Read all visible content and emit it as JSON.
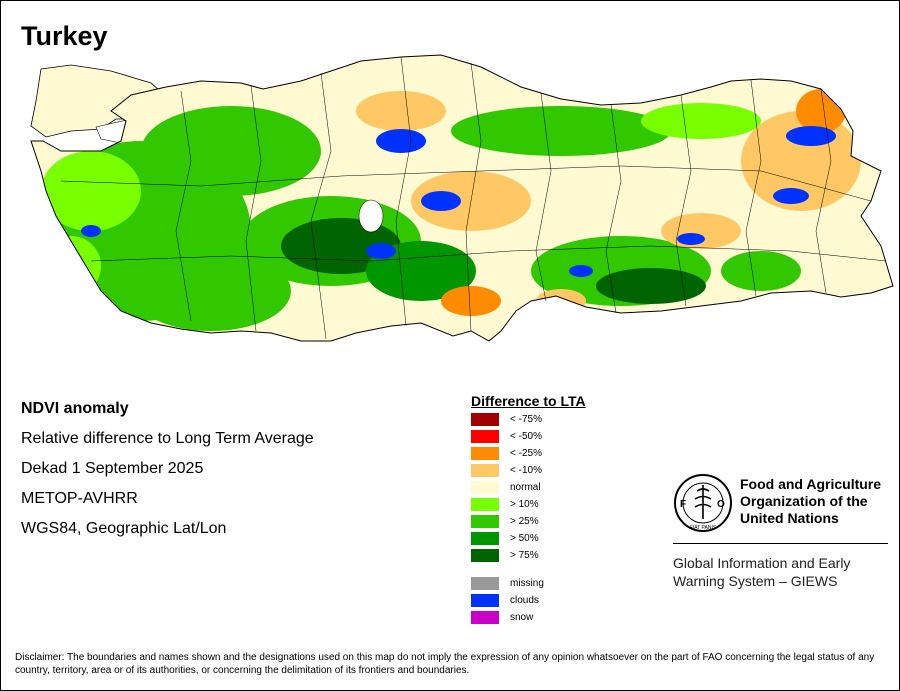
{
  "title": "Turkey",
  "info": {
    "line1": "NDVI anomaly",
    "line2": "Relative difference to Long Term Average",
    "line3": "Dekad 1 September 2025",
    "line4": "METOP-AVHRR",
    "line5": "WGS84, Geographic Lat/Lon"
  },
  "legend": {
    "title": "Difference to LTA",
    "items": [
      {
        "label": "< -75%",
        "color": "#a00000"
      },
      {
        "label": "< -50%",
        "color": "#ff0000"
      },
      {
        "label": "< -25%",
        "color": "#ff8c00"
      },
      {
        "label": "< -10%",
        "color": "#ffc864"
      },
      {
        "label": "normal",
        "color": "#fffad2"
      },
      {
        "label": "> 10%",
        "color": "#78ff00"
      },
      {
        "label": "> 25%",
        "color": "#32c800"
      },
      {
        "label": "> 50%",
        "color": "#009600"
      },
      {
        "label": "> 75%",
        "color": "#006400"
      },
      {
        "label": "missing",
        "color": "#999999"
      },
      {
        "label": "clouds",
        "color": "#0032ff"
      },
      {
        "label": "snow",
        "color": "#c800c8"
      }
    ]
  },
  "fao": {
    "name1": "Food and Agriculture",
    "name2": "Organization of the",
    "name3": "United Nations",
    "logo_text": "FAO",
    "motto": "FIAT PANIS",
    "giews1": "Global Information and Early",
    "giews2": "Warning System – GIEWS"
  },
  "disclaimer": "Disclaimer: The boundaries and names shown and the designations used on this map do not imply the expression of any opinion whatsoever on the part of FAO concerning the legal status of any country, territory, area or of its authorities, or concerning the delimitation of its frontiers and boundaries."
}
